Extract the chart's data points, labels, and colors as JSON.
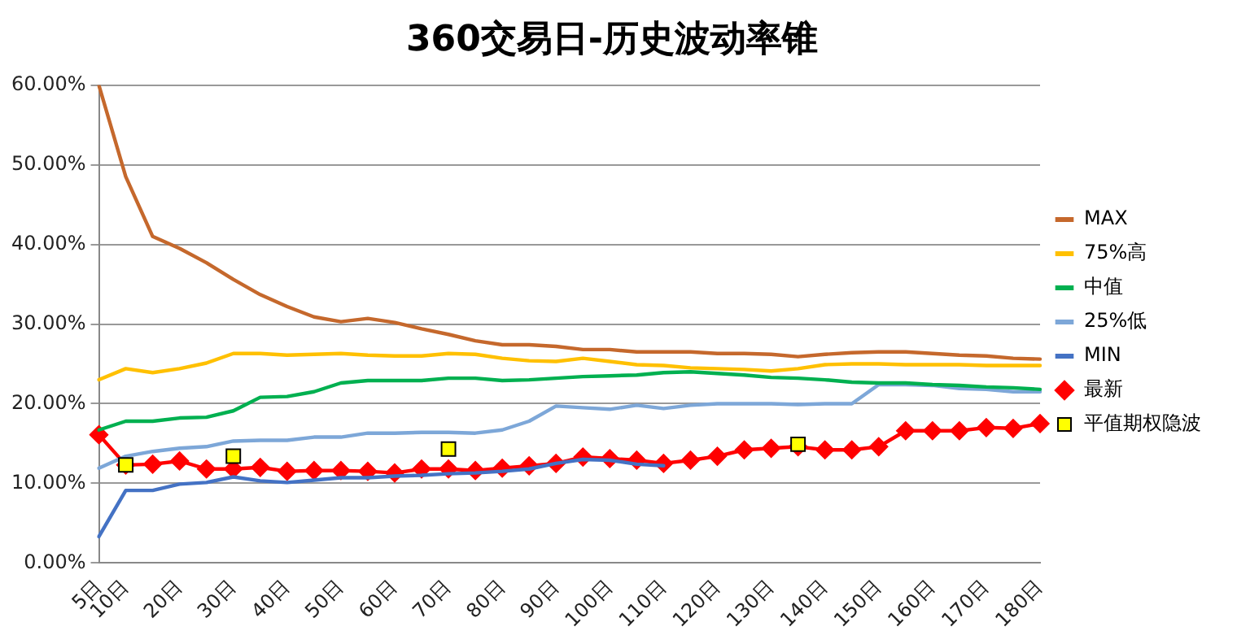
{
  "chart_data": {
    "type": "line",
    "title": "360交易日-历史波动率锥",
    "categories": [
      "5日",
      "10日",
      null,
      "20日",
      null,
      "30日",
      null,
      "40日",
      null,
      "50日",
      null,
      "60日",
      null,
      "70日",
      null,
      "80日",
      null,
      "90日",
      null,
      "100日",
      null,
      "110日",
      null,
      "120日",
      null,
      "130日",
      null,
      "140日",
      null,
      "150日",
      null,
      "160日",
      null,
      "170日",
      null,
      "180日"
    ],
    "ylim": [
      0,
      60
    ],
    "yticks": [
      {
        "value": 0,
        "label": "0.00%"
      },
      {
        "value": 10,
        "label": "10.00%"
      },
      {
        "value": 20,
        "label": "20.00%"
      },
      {
        "value": 30,
        "label": "30.00%"
      },
      {
        "value": 40,
        "label": "40.00%"
      },
      {
        "value": 50,
        "label": "50.00%"
      },
      {
        "value": 60,
        "label": "60.00%"
      }
    ],
    "grid": "y",
    "legend": "right",
    "series": [
      {
        "name": "MAX",
        "color": "#c5682c",
        "marker": "none",
        "values": [
          60,
          48.5,
          41.0,
          39.5,
          37.7,
          35.6,
          33.7,
          32.2,
          30.9,
          30.3,
          30.7,
          30.2,
          29.4,
          28.7,
          27.9,
          27.4,
          27.4,
          27.2,
          26.8,
          26.8,
          26.5,
          26.5,
          26.5,
          26.3,
          26.3,
          26.2,
          25.9,
          26.2,
          26.4,
          26.5,
          26.5,
          26.3,
          26.1,
          26.0,
          25.7,
          25.6
        ]
      },
      {
        "name": "75%高",
        "color": "#ffc000",
        "marker": "none",
        "values": [
          23.0,
          24.4,
          23.9,
          24.4,
          25.1,
          26.3,
          26.3,
          26.1,
          26.2,
          26.3,
          26.1,
          26.0,
          26.0,
          26.3,
          26.2,
          25.7,
          25.4,
          25.3,
          25.7,
          25.3,
          24.9,
          24.8,
          24.5,
          24.4,
          24.3,
          24.1,
          24.4,
          24.9,
          25.0,
          25.0,
          24.9,
          24.9,
          24.9,
          24.8,
          24.8,
          24.8
        ]
      },
      {
        "name": "中值",
        "color": "#00b050",
        "marker": "none",
        "values": [
          16.7,
          17.8,
          17.8,
          18.2,
          18.3,
          19.1,
          20.8,
          20.9,
          21.5,
          22.6,
          22.9,
          22.9,
          22.9,
          23.2,
          23.2,
          22.9,
          23.0,
          23.2,
          23.4,
          23.5,
          23.6,
          23.9,
          24.0,
          23.8,
          23.6,
          23.3,
          23.2,
          23.0,
          22.7,
          22.6,
          22.6,
          22.4,
          22.3,
          22.1,
          22.0,
          21.8
        ]
      },
      {
        "name": "25%低",
        "color": "#7da7d8",
        "marker": "none",
        "values": [
          11.9,
          13.4,
          14.0,
          14.4,
          14.6,
          15.3,
          15.4,
          15.4,
          15.8,
          15.8,
          16.3,
          16.3,
          16.4,
          16.4,
          16.3,
          16.7,
          17.8,
          19.7,
          19.5,
          19.3,
          19.8,
          19.4,
          19.8,
          20.0,
          20.0,
          20.0,
          19.9,
          20.0,
          20.0,
          22.4,
          22.4,
          22.3,
          21.9,
          21.8,
          21.5,
          21.5
        ]
      },
      {
        "name": "MIN",
        "color": "#4472c4",
        "marker": "none",
        "values": [
          3.3,
          9.1,
          9.1,
          9.9,
          10.1,
          10.8,
          10.3,
          10.1,
          10.4,
          10.7,
          10.7,
          10.9,
          11.0,
          11.2,
          11.3,
          11.5,
          11.8,
          12.5,
          13.0,
          12.9,
          12.4,
          12.2,
          null,
          null,
          null,
          null,
          null,
          null,
          null,
          null,
          null,
          null,
          null,
          null,
          null,
          null
        ]
      },
      {
        "name": "最新",
        "color": "#ff0000",
        "marker": "diamond",
        "values": [
          16.1,
          12.3,
          12.4,
          12.8,
          11.8,
          11.8,
          12.0,
          11.5,
          11.6,
          11.6,
          11.5,
          11.3,
          11.8,
          11.8,
          11.6,
          11.9,
          12.2,
          12.5,
          13.3,
          13.1,
          12.9,
          12.5,
          12.9,
          13.4,
          14.2,
          14.4,
          14.6,
          14.2,
          14.2,
          14.6,
          16.6,
          16.6,
          16.6,
          17.0,
          16.9,
          17.5
        ]
      },
      {
        "name": "平值期权隐波",
        "type": "scatter",
        "color": "#ffff00",
        "marker": "square",
        "values": [
          null,
          12.3,
          null,
          null,
          null,
          13.4,
          null,
          null,
          null,
          null,
          null,
          null,
          null,
          14.3,
          null,
          null,
          null,
          null,
          null,
          null,
          null,
          null,
          null,
          null,
          null,
          null,
          14.9,
          null,
          null,
          null,
          null,
          null,
          null,
          null,
          null,
          null
        ]
      }
    ]
  }
}
